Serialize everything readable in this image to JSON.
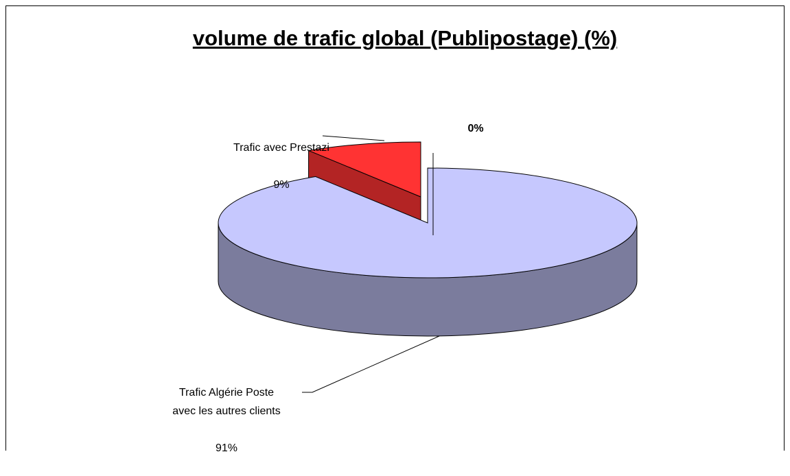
{
  "chart_data": {
    "type": "pie3d",
    "title": "volume de trafic global (Publipostage) (%)",
    "categories": [
      "Trafic  Algérie Poste\navec les autres clients",
      "Trafic avec Prestazi",
      null
    ],
    "values": [
      91,
      9,
      0
    ],
    "value_labels": [
      "91%",
      "9%",
      "0%"
    ],
    "colors": [
      "#c6c8fe",
      "#ff3333",
      "#c8c83c"
    ]
  }
}
